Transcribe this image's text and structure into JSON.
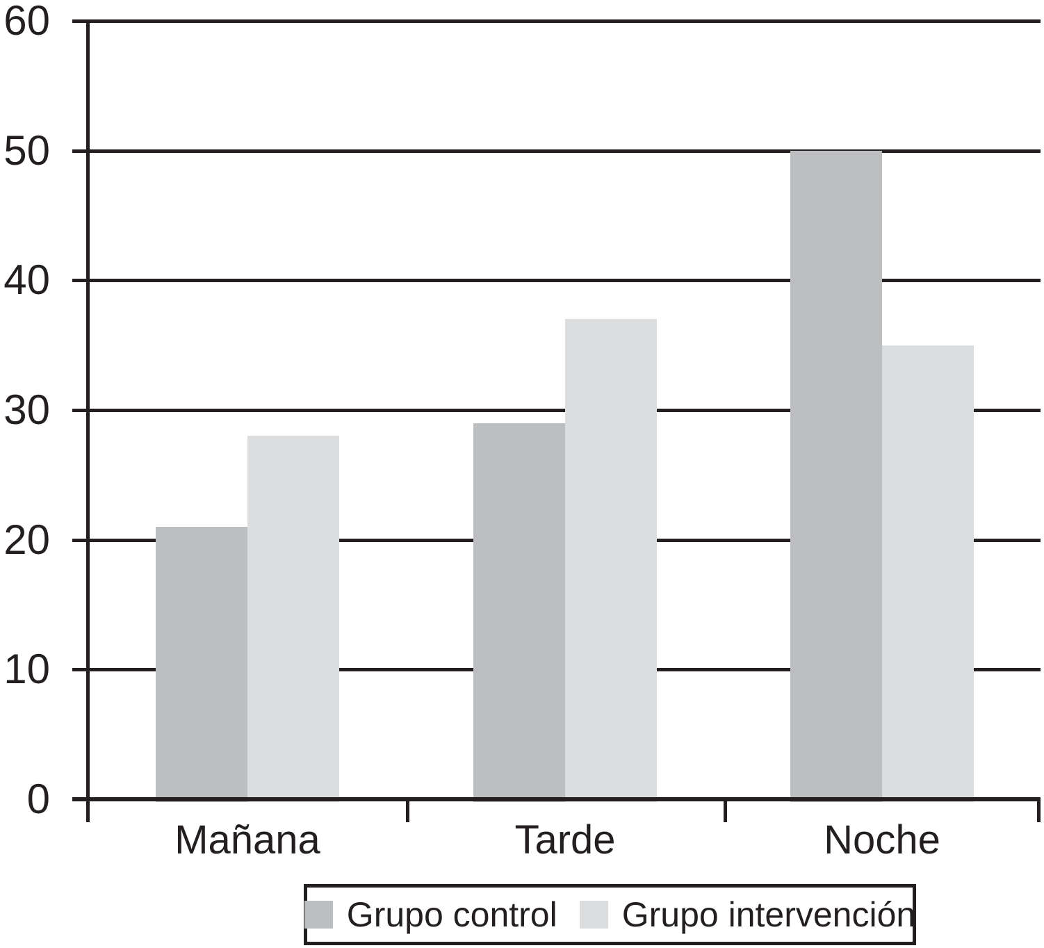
{
  "chart_data": {
    "type": "bar",
    "categories": [
      "Mañana",
      "Tarde",
      "Noche"
    ],
    "series": [
      {
        "name": "Grupo control",
        "color": "#bcbec0",
        "values": [
          21,
          29,
          50
        ]
      },
      {
        "name": "Grupo intervención",
        "color": "#dcddde",
        "values": [
          28,
          37,
          35
        ]
      }
    ],
    "title": "",
    "xlabel": "",
    "ylabel": "",
    "ylim": [
      0,
      60
    ],
    "yticks": [
      0,
      10,
      20,
      30,
      40,
      50,
      60
    ],
    "grid": "horizontal",
    "legend_position": "bottom",
    "line_color": "#231f20",
    "background_color": "#ffffff"
  }
}
